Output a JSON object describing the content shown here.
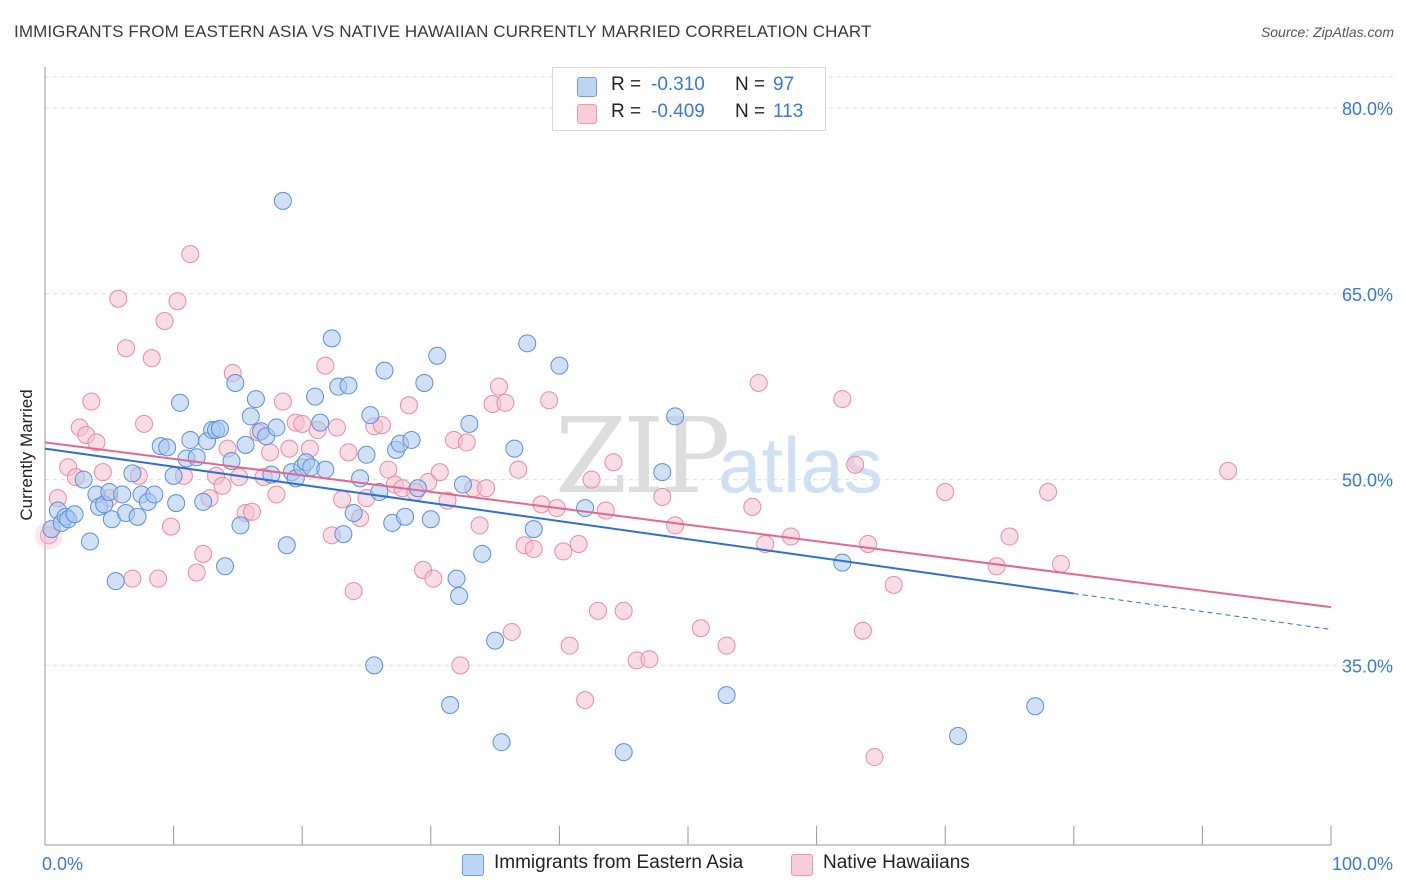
{
  "title": "IMMIGRANTS FROM EASTERN ASIA VS NATIVE HAWAIIAN CURRENTLY MARRIED CORRELATION CHART",
  "source": "Source: ZipAtlas.com",
  "watermark": {
    "zip": "ZIP",
    "atlas": "atlas"
  },
  "legend": {
    "rows": [
      {
        "r_label": "R =",
        "r_value": "-0.310",
        "n_label": "N =",
        "n_value": "97"
      },
      {
        "r_label": "R =",
        "r_value": "-0.409",
        "n_label": "N =",
        "n_value": "113"
      }
    ]
  },
  "bottom_legend": [
    "Immigrants from Eastern Asia",
    "Native Hawaiians"
  ],
  "colors": {
    "blue_fill": "#a9c8f0",
    "blue_stroke": "#5a8fd8",
    "blue_line": "#2f6fd0",
    "pink_fill": "#f6bfd0",
    "pink_stroke": "#e889a8",
    "pink_line": "#e2678f",
    "tick_text": "#3a78d6",
    "grid": "#dddddd"
  },
  "chart_data": {
    "type": "scatter",
    "title": "IMMIGRANTS FROM EASTERN ASIA VS NATIVE HAWAIIAN CURRENTLY MARRIED CORRELATION CHART",
    "xlabel": "",
    "ylabel": "Currently Married",
    "xlim": [
      0,
      100
    ],
    "ylim": [
      20.5,
      82.5
    ],
    "x_tick_labels": [
      "0.0%",
      "100.0%"
    ],
    "y_ticks": [
      35,
      50,
      65,
      80
    ],
    "y_tick_labels": [
      "35.0%",
      "50.0%",
      "65.0%",
      "80.0%"
    ],
    "grid": "horizontal dashed",
    "legend_position": "top-center",
    "series": [
      {
        "name": "Immigrants from Eastern Asia",
        "color": "#a9c8f0",
        "trend": {
          "x": [
            0,
            80,
            100
          ],
          "y": [
            52.5,
            40.8,
            37.9
          ],
          "solid_until": 80
        },
        "points": [
          [
            0.5,
            46
          ],
          [
            1,
            47.5
          ],
          [
            1.3,
            46.5
          ],
          [
            1.6,
            47
          ],
          [
            1.8,
            46.8
          ],
          [
            2.3,
            47.2
          ],
          [
            3,
            50
          ],
          [
            3.5,
            45
          ],
          [
            4,
            48.8
          ],
          [
            4.2,
            47.8
          ],
          [
            4.6,
            48
          ],
          [
            5,
            49
          ],
          [
            5.2,
            46.8
          ],
          [
            5.5,
            41.8
          ],
          [
            6,
            48.8
          ],
          [
            6.3,
            47.3
          ],
          [
            6.8,
            50.5
          ],
          [
            7.2,
            47
          ],
          [
            7.5,
            48.8
          ],
          [
            8,
            48.2
          ],
          [
            8.5,
            48.8
          ],
          [
            9,
            52.7
          ],
          [
            9.5,
            52.6
          ],
          [
            10,
            50.3
          ],
          [
            10.2,
            48.1
          ],
          [
            10.5,
            56.2
          ],
          [
            11,
            51.7
          ],
          [
            11.3,
            53.2
          ],
          [
            11.8,
            51.8
          ],
          [
            12.3,
            48.2
          ],
          [
            12.6,
            53.1
          ],
          [
            13,
            54
          ],
          [
            13.3,
            54
          ],
          [
            13.6,
            54.1
          ],
          [
            14,
            43
          ],
          [
            14.5,
            51.5
          ],
          [
            14.8,
            57.8
          ],
          [
            15.2,
            46.3
          ],
          [
            15.6,
            52.8
          ],
          [
            16,
            55.1
          ],
          [
            16.4,
            56.5
          ],
          [
            16.8,
            53.9
          ],
          [
            17.2,
            53.5
          ],
          [
            17.6,
            50.4
          ],
          [
            18,
            54.2
          ],
          [
            18.5,
            72.5
          ],
          [
            18.8,
            44.7
          ],
          [
            19.2,
            50.6
          ],
          [
            19.5,
            50.1
          ],
          [
            20,
            51
          ],
          [
            20.3,
            51.4
          ],
          [
            20.7,
            51
          ],
          [
            21,
            56.7
          ],
          [
            21.4,
            54.6
          ],
          [
            21.8,
            50.8
          ],
          [
            22.3,
            61.4
          ],
          [
            22.8,
            57.5
          ],
          [
            23.2,
            45.6
          ],
          [
            23.6,
            57.6
          ],
          [
            24,
            47.3
          ],
          [
            24.5,
            50.1
          ],
          [
            25,
            52
          ],
          [
            25.3,
            55.2
          ],
          [
            25.6,
            35
          ],
          [
            26,
            49
          ],
          [
            26.4,
            58.8
          ],
          [
            27,
            46.5
          ],
          [
            27.3,
            52.4
          ],
          [
            27.6,
            52.9
          ],
          [
            28,
            47
          ],
          [
            28.5,
            53.2
          ],
          [
            29,
            49.3
          ],
          [
            29.5,
            57.8
          ],
          [
            30,
            46.8
          ],
          [
            30.5,
            60
          ],
          [
            31.5,
            31.8
          ],
          [
            32,
            42
          ],
          [
            32.2,
            40.6
          ],
          [
            32.5,
            49.6
          ],
          [
            33,
            54.5
          ],
          [
            34,
            44
          ],
          [
            35,
            37
          ],
          [
            35.5,
            28.8
          ],
          [
            36.5,
            52.5
          ],
          [
            37.5,
            61
          ],
          [
            38,
            46
          ],
          [
            40,
            59.2
          ],
          [
            42,
            47.7
          ],
          [
            45,
            28
          ],
          [
            48,
            50.6
          ],
          [
            49,
            55.1
          ],
          [
            53,
            32.6
          ],
          [
            62,
            43.3
          ],
          [
            71,
            29.3
          ],
          [
            77,
            31.7
          ]
        ]
      },
      {
        "name": "Native Hawaiians",
        "color": "#f6bfd0",
        "trend": {
          "x": [
            0,
            100
          ],
          "y": [
            53,
            39.7
          ]
        },
        "points": [
          [
            0.3,
            45.5
          ],
          [
            1,
            48.5
          ],
          [
            1.8,
            51
          ],
          [
            2.4,
            50.2
          ],
          [
            2.7,
            54.2
          ],
          [
            3.2,
            53.6
          ],
          [
            3.6,
            56.3
          ],
          [
            4,
            53
          ],
          [
            4.5,
            50.6
          ],
          [
            5,
            48.5
          ],
          [
            5.7,
            64.6
          ],
          [
            6.3,
            60.6
          ],
          [
            6.8,
            42
          ],
          [
            7.3,
            50.3
          ],
          [
            7.7,
            54.5
          ],
          [
            8.3,
            59.8
          ],
          [
            8.8,
            42
          ],
          [
            9.3,
            62.8
          ],
          [
            9.8,
            46.2
          ],
          [
            10.3,
            64.4
          ],
          [
            10.8,
            50.3
          ],
          [
            11.3,
            68.2
          ],
          [
            11.8,
            42.5
          ],
          [
            12.3,
            44
          ],
          [
            12.8,
            48.5
          ],
          [
            13.3,
            50.3
          ],
          [
            13.8,
            49.5
          ],
          [
            14.2,
            52.5
          ],
          [
            14.6,
            58.6
          ],
          [
            15.1,
            50.2
          ],
          [
            15.6,
            47.3
          ],
          [
            16.1,
            47.4
          ],
          [
            16.6,
            53.8
          ],
          [
            17,
            50.2
          ],
          [
            17.5,
            52.2
          ],
          [
            18,
            48.8
          ],
          [
            18.5,
            56.3
          ],
          [
            19,
            52.5
          ],
          [
            19.5,
            54.6
          ],
          [
            20,
            54.5
          ],
          [
            20.6,
            52.5
          ],
          [
            21.2,
            54
          ],
          [
            21.8,
            59.2
          ],
          [
            22.3,
            45.5
          ],
          [
            22.7,
            54.2
          ],
          [
            23.1,
            48.4
          ],
          [
            23.6,
            52.2
          ],
          [
            24,
            41
          ],
          [
            24.5,
            46.9
          ],
          [
            25,
            48.5
          ],
          [
            25.6,
            54.3
          ],
          [
            26.2,
            54.4
          ],
          [
            26.7,
            50.8
          ],
          [
            27.2,
            49.6
          ],
          [
            27.8,
            49.3
          ],
          [
            28.3,
            56
          ],
          [
            28.8,
            49
          ],
          [
            29.4,
            42.7
          ],
          [
            29.8,
            49.8
          ],
          [
            30.2,
            42
          ],
          [
            30.7,
            50.6
          ],
          [
            31.3,
            48.3
          ],
          [
            31.8,
            53.2
          ],
          [
            32.3,
            35
          ],
          [
            32.8,
            53
          ],
          [
            33.3,
            49.3
          ],
          [
            33.8,
            46.3
          ],
          [
            34.3,
            49.3
          ],
          [
            34.8,
            56.1
          ],
          [
            35.3,
            57.5
          ],
          [
            35.8,
            56.2
          ],
          [
            36.3,
            37.7
          ],
          [
            36.8,
            50.8
          ],
          [
            37.3,
            44.7
          ],
          [
            38,
            44.4
          ],
          [
            38.6,
            48
          ],
          [
            39.2,
            56.4
          ],
          [
            39.8,
            47.7
          ],
          [
            40.3,
            44.2
          ],
          [
            40.8,
            36.6
          ],
          [
            41.5,
            44.8
          ],
          [
            42,
            32.2
          ],
          [
            42.5,
            50
          ],
          [
            43,
            39.4
          ],
          [
            43.6,
            47.5
          ],
          [
            44.2,
            51.4
          ],
          [
            45,
            39.4
          ],
          [
            46,
            35.4
          ],
          [
            47,
            35.5
          ],
          [
            48,
            48.6
          ],
          [
            49,
            46.3
          ],
          [
            51,
            38
          ],
          [
            53,
            36.6
          ],
          [
            55,
            47.8
          ],
          [
            55.5,
            57.8
          ],
          [
            56,
            44.8
          ],
          [
            58,
            45.4
          ],
          [
            62,
            56.5
          ],
          [
            63,
            51.2
          ],
          [
            63.6,
            37.8
          ],
          [
            64,
            44.8
          ],
          [
            64.5,
            27.6
          ],
          [
            66,
            41.5
          ],
          [
            70,
            49
          ],
          [
            74,
            43
          ],
          [
            75,
            45.4
          ],
          [
            78,
            49
          ],
          [
            79,
            43.2
          ],
          [
            92,
            50.7
          ]
        ]
      }
    ]
  }
}
